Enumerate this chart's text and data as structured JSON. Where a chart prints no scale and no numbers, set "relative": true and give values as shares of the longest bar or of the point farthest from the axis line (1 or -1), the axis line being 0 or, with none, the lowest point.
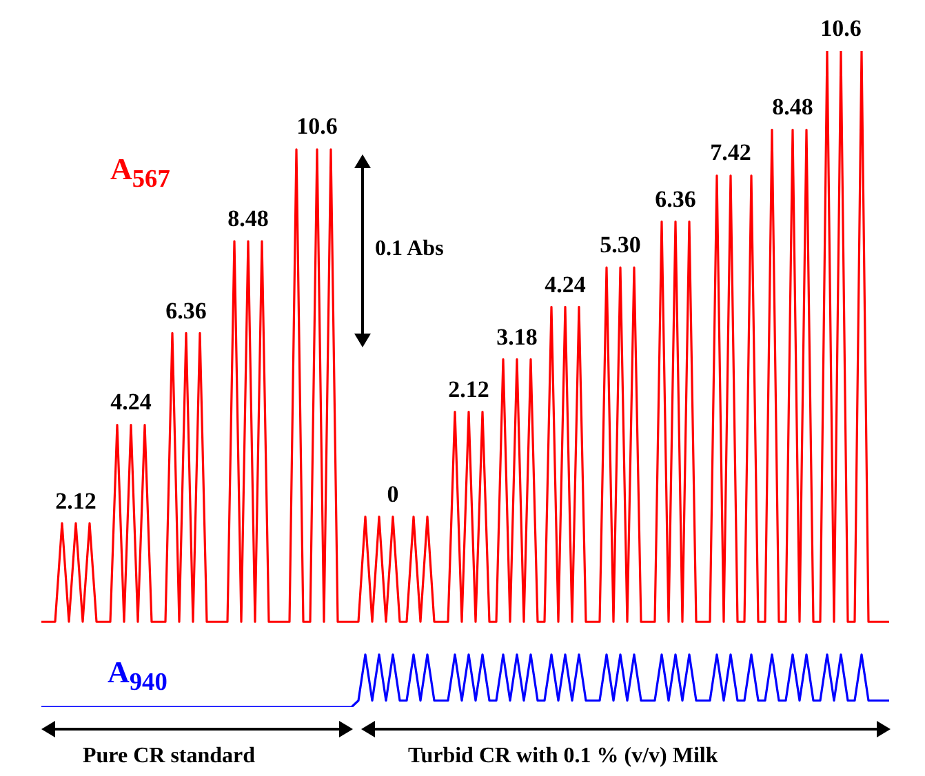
{
  "chart_data": {
    "type": "line",
    "relative": true,
    "marker": "none",
    "categories": [
      null,
      null,
      null,
      null,
      null,
      null,
      null,
      null,
      null,
      null,
      null,
      null,
      null,
      null,
      null,
      null,
      null,
      null,
      null,
      null,
      null,
      null,
      null,
      null,
      null,
      null,
      null,
      null,
      null,
      null,
      null,
      null,
      null,
      null,
      null,
      null,
      null,
      null,
      null,
      null,
      null,
      null,
      null,
      null,
      null,
      null,
      null,
      null,
      null,
      null,
      null,
      null,
      null,
      null,
      null,
      null,
      null,
      null,
      null,
      null,
      null,
      null,
      null,
      null,
      null,
      null,
      null,
      null,
      null,
      null,
      null,
      null,
      null,
      null,
      null,
      null,
      null,
      null,
      null,
      null,
      null,
      null,
      null,
      null,
      null,
      null,
      null,
      null,
      null,
      null,
      null,
      null,
      null,
      null,
      null,
      null,
      null,
      null,
      null,
      null,
      null,
      null,
      null,
      null,
      null,
      null,
      null,
      null,
      null,
      null,
      null,
      null,
      null,
      null,
      null,
      null,
      null,
      null,
      null,
      null,
      null,
      null,
      null,
      null
    ],
    "series": [
      {
        "name": "A$_{567}$",
        "color": "#ff0000",
        "values": [
          0.13,
          0.13,
          0.13,
          0.28,
          0.13,
          0.28,
          0.13,
          0.28,
          0.13,
          0.13,
          0.13,
          0.43,
          0.13,
          0.43,
          0.13,
          0.43,
          0.13,
          0.13,
          0.13,
          0.57,
          0.13,
          0.57,
          0.13,
          0.57,
          0.13,
          0.13,
          0.13,
          0.13,
          0.71,
          0.13,
          0.71,
          0.13,
          0.71,
          0.13,
          0.13,
          0.13,
          0.13,
          0.85,
          0.13,
          0.13,
          0.85,
          0.13,
          0.85,
          0.13,
          0.13,
          0.13,
          0.13,
          0.29,
          0.13,
          0.29,
          0.13,
          0.29,
          0.13,
          0.13,
          0.29,
          0.13,
          0.29,
          0.13,
          0.13,
          0.13,
          0.45,
          0.13,
          0.45,
          0.13,
          0.45,
          0.13,
          0.13,
          0.53,
          0.13,
          0.53,
          0.13,
          0.53,
          0.13,
          0.13,
          0.61,
          0.13,
          0.61,
          0.13,
          0.61,
          0.13,
          0.13,
          0.13,
          0.67,
          0.13,
          0.67,
          0.13,
          0.67,
          0.13,
          0.13,
          0.13,
          0.74,
          0.13,
          0.74,
          0.13,
          0.74,
          0.13,
          0.13,
          0.13,
          0.81,
          0.13,
          0.81,
          0.13,
          0.13,
          0.81,
          0.13,
          0.13,
          0.88,
          0.13,
          0.13,
          0.88,
          0.13,
          0.88,
          0.13,
          0.13,
          1,
          0.13,
          1,
          0.13,
          0.13,
          1,
          0.13,
          0.13,
          0.13,
          0.13
        ]
      },
      {
        "name": "A$_{940}$",
        "color": "#0000ff",
        "values": [
          0,
          0,
          0,
          0,
          0,
          0,
          0,
          0,
          0,
          0,
          0,
          0,
          0,
          0,
          0,
          0,
          0,
          0,
          0,
          0,
          0,
          0,
          0,
          0,
          0,
          0,
          0,
          0,
          0,
          0,
          0,
          0,
          0,
          0,
          0,
          0,
          0,
          0,
          0,
          0,
          0,
          0,
          0,
          0,
          0,
          0,
          0.01,
          0.08,
          0.01,
          0.08,
          0.01,
          0.08,
          0.01,
          0.01,
          0.08,
          0.01,
          0.08,
          0.01,
          0.01,
          0.01,
          0.08,
          0.01,
          0.08,
          0.01,
          0.08,
          0.01,
          0.01,
          0.08,
          0.01,
          0.08,
          0.01,
          0.08,
          0.01,
          0.01,
          0.08,
          0.01,
          0.08,
          0.01,
          0.08,
          0.01,
          0.01,
          0.01,
          0.08,
          0.01,
          0.08,
          0.01,
          0.08,
          0.01,
          0.01,
          0.01,
          0.08,
          0.01,
          0.08,
          0.01,
          0.08,
          0.01,
          0.01,
          0.01,
          0.08,
          0.01,
          0.08,
          0.01,
          0.01,
          0.08,
          0.01,
          0.01,
          0.08,
          0.01,
          0.01,
          0.08,
          0.01,
          0.08,
          0.01,
          0.01,
          0.08,
          0.01,
          0.08,
          0.01,
          0.01,
          0.08,
          0.01,
          0.01,
          0.01,
          0.01
        ]
      }
    ],
    "annotations": [
      "2.12",
      "4.24",
      "6.36",
      "8.48",
      "10.6",
      "0",
      "2.12",
      "3.18",
      "4.24",
      "5.30",
      "6.36",
      "7.42",
      "8.48",
      "10.6",
      "0.1 Abs",
      "Pure CR standard",
      "Turbid CR with 0.1 % (v/v) Milk"
    ]
  }
}
